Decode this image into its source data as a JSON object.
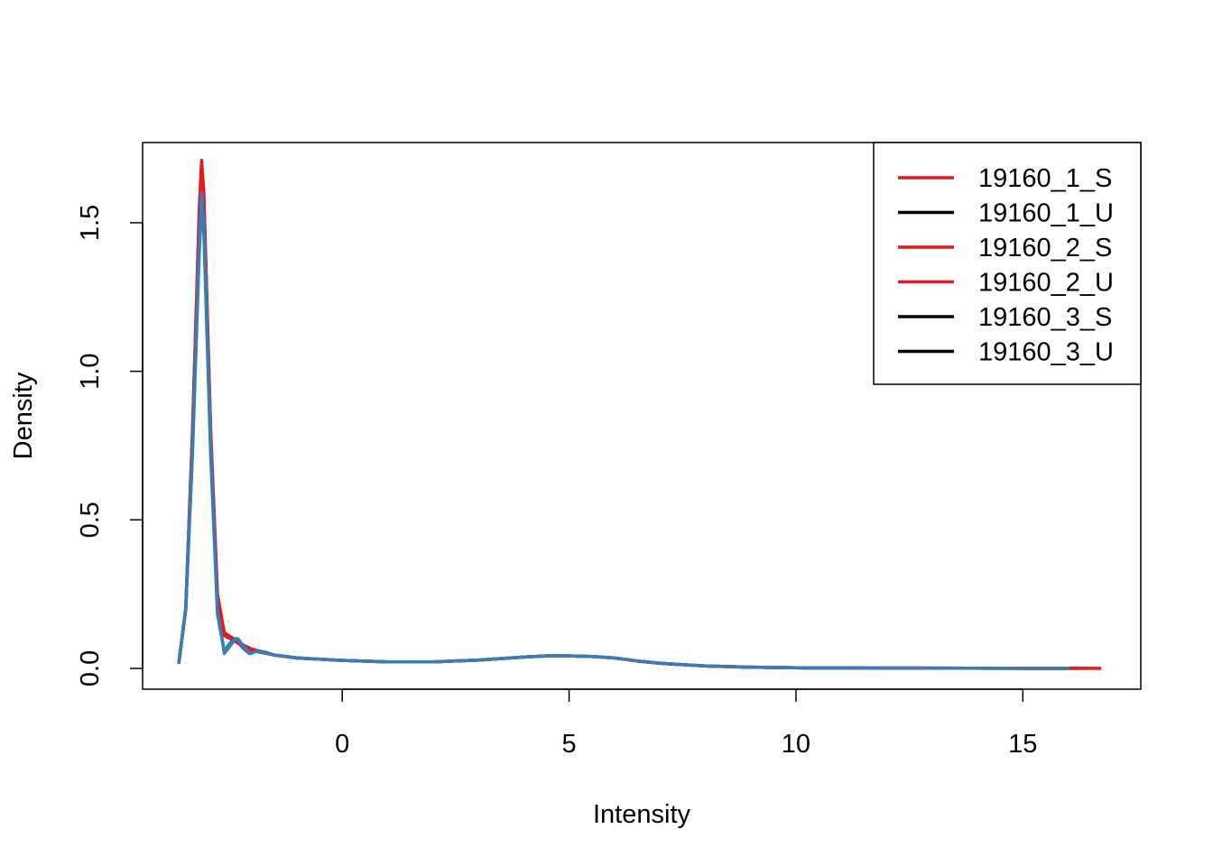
{
  "chart_data": {
    "type": "line",
    "title": "",
    "xlabel": "Intensity",
    "ylabel": "Density",
    "xlim": [
      -4.4,
      17.6
    ],
    "ylim": [
      -0.07,
      1.77
    ],
    "x_ticks": [
      0,
      5,
      10,
      15
    ],
    "x_tick_labels": [
      "0",
      "5",
      "10",
      "15"
    ],
    "y_ticks": [
      0.0,
      0.5,
      1.0,
      1.5
    ],
    "y_tick_labels": [
      "0.0",
      "0.5",
      "1.0",
      "1.5"
    ],
    "grid": false,
    "legend_position": "top-right",
    "series": [
      {
        "name": "19160_1_S",
        "legend_color": "#E41A1C",
        "line_color": "#E41A1C",
        "points": [
          [
            -3.6,
            0.02
          ],
          [
            -3.45,
            0.2
          ],
          [
            -3.3,
            0.8
          ],
          [
            -3.15,
            1.55
          ],
          [
            -3.1,
            1.71
          ],
          [
            -3.05,
            1.6
          ],
          [
            -2.9,
            0.8
          ],
          [
            -2.75,
            0.25
          ],
          [
            -2.6,
            0.12
          ],
          [
            -2.4,
            0.1
          ],
          [
            -2.2,
            0.08
          ],
          [
            -2.0,
            0.065
          ],
          [
            -1.5,
            0.045
          ],
          [
            -1.0,
            0.035
          ],
          [
            0,
            0.027
          ],
          [
            1,
            0.022
          ],
          [
            2,
            0.022
          ],
          [
            3,
            0.028
          ],
          [
            4,
            0.038
          ],
          [
            4.5,
            0.042
          ],
          [
            5,
            0.042
          ],
          [
            5.5,
            0.04
          ],
          [
            6,
            0.035
          ],
          [
            6.5,
            0.025
          ],
          [
            7,
            0.017
          ],
          [
            8,
            0.008
          ],
          [
            9,
            0.004
          ],
          [
            10,
            0.002
          ],
          [
            12,
            0.001
          ],
          [
            15,
            0.0
          ],
          [
            16.7,
            0.0
          ]
        ]
      },
      {
        "name": "19160_1_U",
        "legend_color": "#000000",
        "line_color": "#377EB8",
        "points": [
          [
            -3.6,
            0.02
          ],
          [
            -3.45,
            0.2
          ],
          [
            -3.3,
            0.75
          ],
          [
            -3.15,
            1.45
          ],
          [
            -3.1,
            1.58
          ],
          [
            -3.05,
            1.5
          ],
          [
            -2.9,
            0.75
          ],
          [
            -2.75,
            0.2
          ],
          [
            -2.6,
            0.05
          ],
          [
            -2.5,
            0.07
          ],
          [
            -2.35,
            0.1
          ],
          [
            -2.2,
            0.07
          ],
          [
            -2.05,
            0.05
          ],
          [
            -1.9,
            0.06
          ],
          [
            -1.7,
            0.055
          ],
          [
            -1.5,
            0.045
          ],
          [
            -1.0,
            0.035
          ],
          [
            0,
            0.027
          ],
          [
            1,
            0.022
          ],
          [
            2,
            0.022
          ],
          [
            3,
            0.028
          ],
          [
            4,
            0.038
          ],
          [
            4.5,
            0.042
          ],
          [
            5,
            0.042
          ],
          [
            5.5,
            0.04
          ],
          [
            6,
            0.035
          ],
          [
            6.5,
            0.025
          ],
          [
            7,
            0.017
          ],
          [
            8,
            0.008
          ],
          [
            9,
            0.004
          ],
          [
            10,
            0.002
          ],
          [
            12,
            0.001
          ],
          [
            15,
            0.0
          ],
          [
            16.0,
            0.0
          ]
        ]
      },
      {
        "name": "19160_2_S",
        "legend_color": "#E41A1C",
        "line_color": "#E41A1C",
        "points": [
          [
            -3.6,
            0.02
          ],
          [
            -3.45,
            0.2
          ],
          [
            -3.3,
            0.78
          ],
          [
            -3.15,
            1.5
          ],
          [
            -3.1,
            1.66
          ],
          [
            -3.05,
            1.55
          ],
          [
            -2.9,
            0.78
          ],
          [
            -2.75,
            0.22
          ],
          [
            -2.6,
            0.11
          ],
          [
            -2.4,
            0.095
          ],
          [
            -2.2,
            0.075
          ],
          [
            -2.0,
            0.06
          ],
          [
            -1.5,
            0.045
          ],
          [
            -1.0,
            0.035
          ],
          [
            0,
            0.027
          ],
          [
            1,
            0.022
          ],
          [
            2,
            0.022
          ],
          [
            3,
            0.028
          ],
          [
            4,
            0.038
          ],
          [
            4.5,
            0.042
          ],
          [
            5,
            0.042
          ],
          [
            5.5,
            0.04
          ],
          [
            6,
            0.035
          ],
          [
            6.5,
            0.025
          ],
          [
            7,
            0.017
          ],
          [
            8,
            0.008
          ],
          [
            9,
            0.004
          ],
          [
            10,
            0.002
          ],
          [
            12,
            0.001
          ],
          [
            15,
            0.0
          ],
          [
            16.4,
            0.0
          ]
        ]
      },
      {
        "name": "19160_2_U",
        "legend_color": "#E41A1C",
        "line_color": "#377EB8",
        "points": [
          [
            -3.6,
            0.02
          ],
          [
            -3.45,
            0.2
          ],
          [
            -3.3,
            0.72
          ],
          [
            -3.15,
            1.4
          ],
          [
            -3.1,
            1.56
          ],
          [
            -3.05,
            1.46
          ],
          [
            -2.9,
            0.72
          ],
          [
            -2.75,
            0.18
          ],
          [
            -2.6,
            0.06
          ],
          [
            -2.45,
            0.09
          ],
          [
            -2.3,
            0.1
          ],
          [
            -2.15,
            0.07
          ],
          [
            -2.0,
            0.055
          ],
          [
            -1.85,
            0.06
          ],
          [
            -1.5,
            0.045
          ],
          [
            -1.0,
            0.035
          ],
          [
            0,
            0.027
          ],
          [
            1,
            0.022
          ],
          [
            2,
            0.022
          ],
          [
            3,
            0.028
          ],
          [
            4,
            0.038
          ],
          [
            4.5,
            0.042
          ],
          [
            5,
            0.042
          ],
          [
            5.5,
            0.04
          ],
          [
            6,
            0.035
          ],
          [
            6.5,
            0.025
          ],
          [
            7,
            0.017
          ],
          [
            8,
            0.008
          ],
          [
            9,
            0.004
          ],
          [
            10,
            0.002
          ],
          [
            12,
            0.001
          ],
          [
            15,
            0.0
          ],
          [
            16.0,
            0.0
          ]
        ]
      },
      {
        "name": "19160_3_S",
        "legend_color": "#000000",
        "line_color": "#E41A1C",
        "points": [
          [
            -3.6,
            0.02
          ],
          [
            -3.45,
            0.2
          ],
          [
            -3.3,
            0.8
          ],
          [
            -3.15,
            1.52
          ],
          [
            -3.1,
            1.68
          ],
          [
            -3.05,
            1.58
          ],
          [
            -2.9,
            0.8
          ],
          [
            -2.75,
            0.24
          ],
          [
            -2.6,
            0.12
          ],
          [
            -2.4,
            0.1
          ],
          [
            -2.2,
            0.078
          ],
          [
            -2.0,
            0.062
          ],
          [
            -1.5,
            0.045
          ],
          [
            -1.0,
            0.035
          ],
          [
            0,
            0.027
          ],
          [
            1,
            0.022
          ],
          [
            2,
            0.022
          ],
          [
            3,
            0.028
          ],
          [
            4,
            0.038
          ],
          [
            4.5,
            0.042
          ],
          [
            5,
            0.042
          ],
          [
            5.5,
            0.04
          ],
          [
            6,
            0.035
          ],
          [
            6.5,
            0.025
          ],
          [
            7,
            0.017
          ],
          [
            8,
            0.008
          ],
          [
            9,
            0.004
          ],
          [
            10,
            0.002
          ],
          [
            12,
            0.001
          ],
          [
            15,
            0.0
          ],
          [
            16.2,
            0.0
          ]
        ]
      },
      {
        "name": "19160_3_U",
        "legend_color": "#000000",
        "line_color": "#377EB8",
        "points": [
          [
            -3.6,
            0.02
          ],
          [
            -3.45,
            0.2
          ],
          [
            -3.3,
            0.74
          ],
          [
            -3.15,
            1.43
          ],
          [
            -3.1,
            1.6
          ],
          [
            -3.05,
            1.5
          ],
          [
            -2.9,
            0.74
          ],
          [
            -2.75,
            0.19
          ],
          [
            -2.6,
            0.055
          ],
          [
            -2.48,
            0.08
          ],
          [
            -2.33,
            0.1
          ],
          [
            -2.18,
            0.075
          ],
          [
            -2.02,
            0.05
          ],
          [
            -1.88,
            0.058
          ],
          [
            -1.5,
            0.045
          ],
          [
            -1.0,
            0.035
          ],
          [
            0,
            0.027
          ],
          [
            1,
            0.022
          ],
          [
            2,
            0.022
          ],
          [
            3,
            0.028
          ],
          [
            4,
            0.038
          ],
          [
            4.5,
            0.042
          ],
          [
            5,
            0.042
          ],
          [
            5.5,
            0.04
          ],
          [
            6,
            0.035
          ],
          [
            6.5,
            0.025
          ],
          [
            7,
            0.017
          ],
          [
            8,
            0.008
          ],
          [
            9,
            0.004
          ],
          [
            10,
            0.002
          ],
          [
            12,
            0.001
          ],
          [
            15,
            0.0
          ],
          [
            16.0,
            0.0
          ]
        ]
      }
    ]
  }
}
